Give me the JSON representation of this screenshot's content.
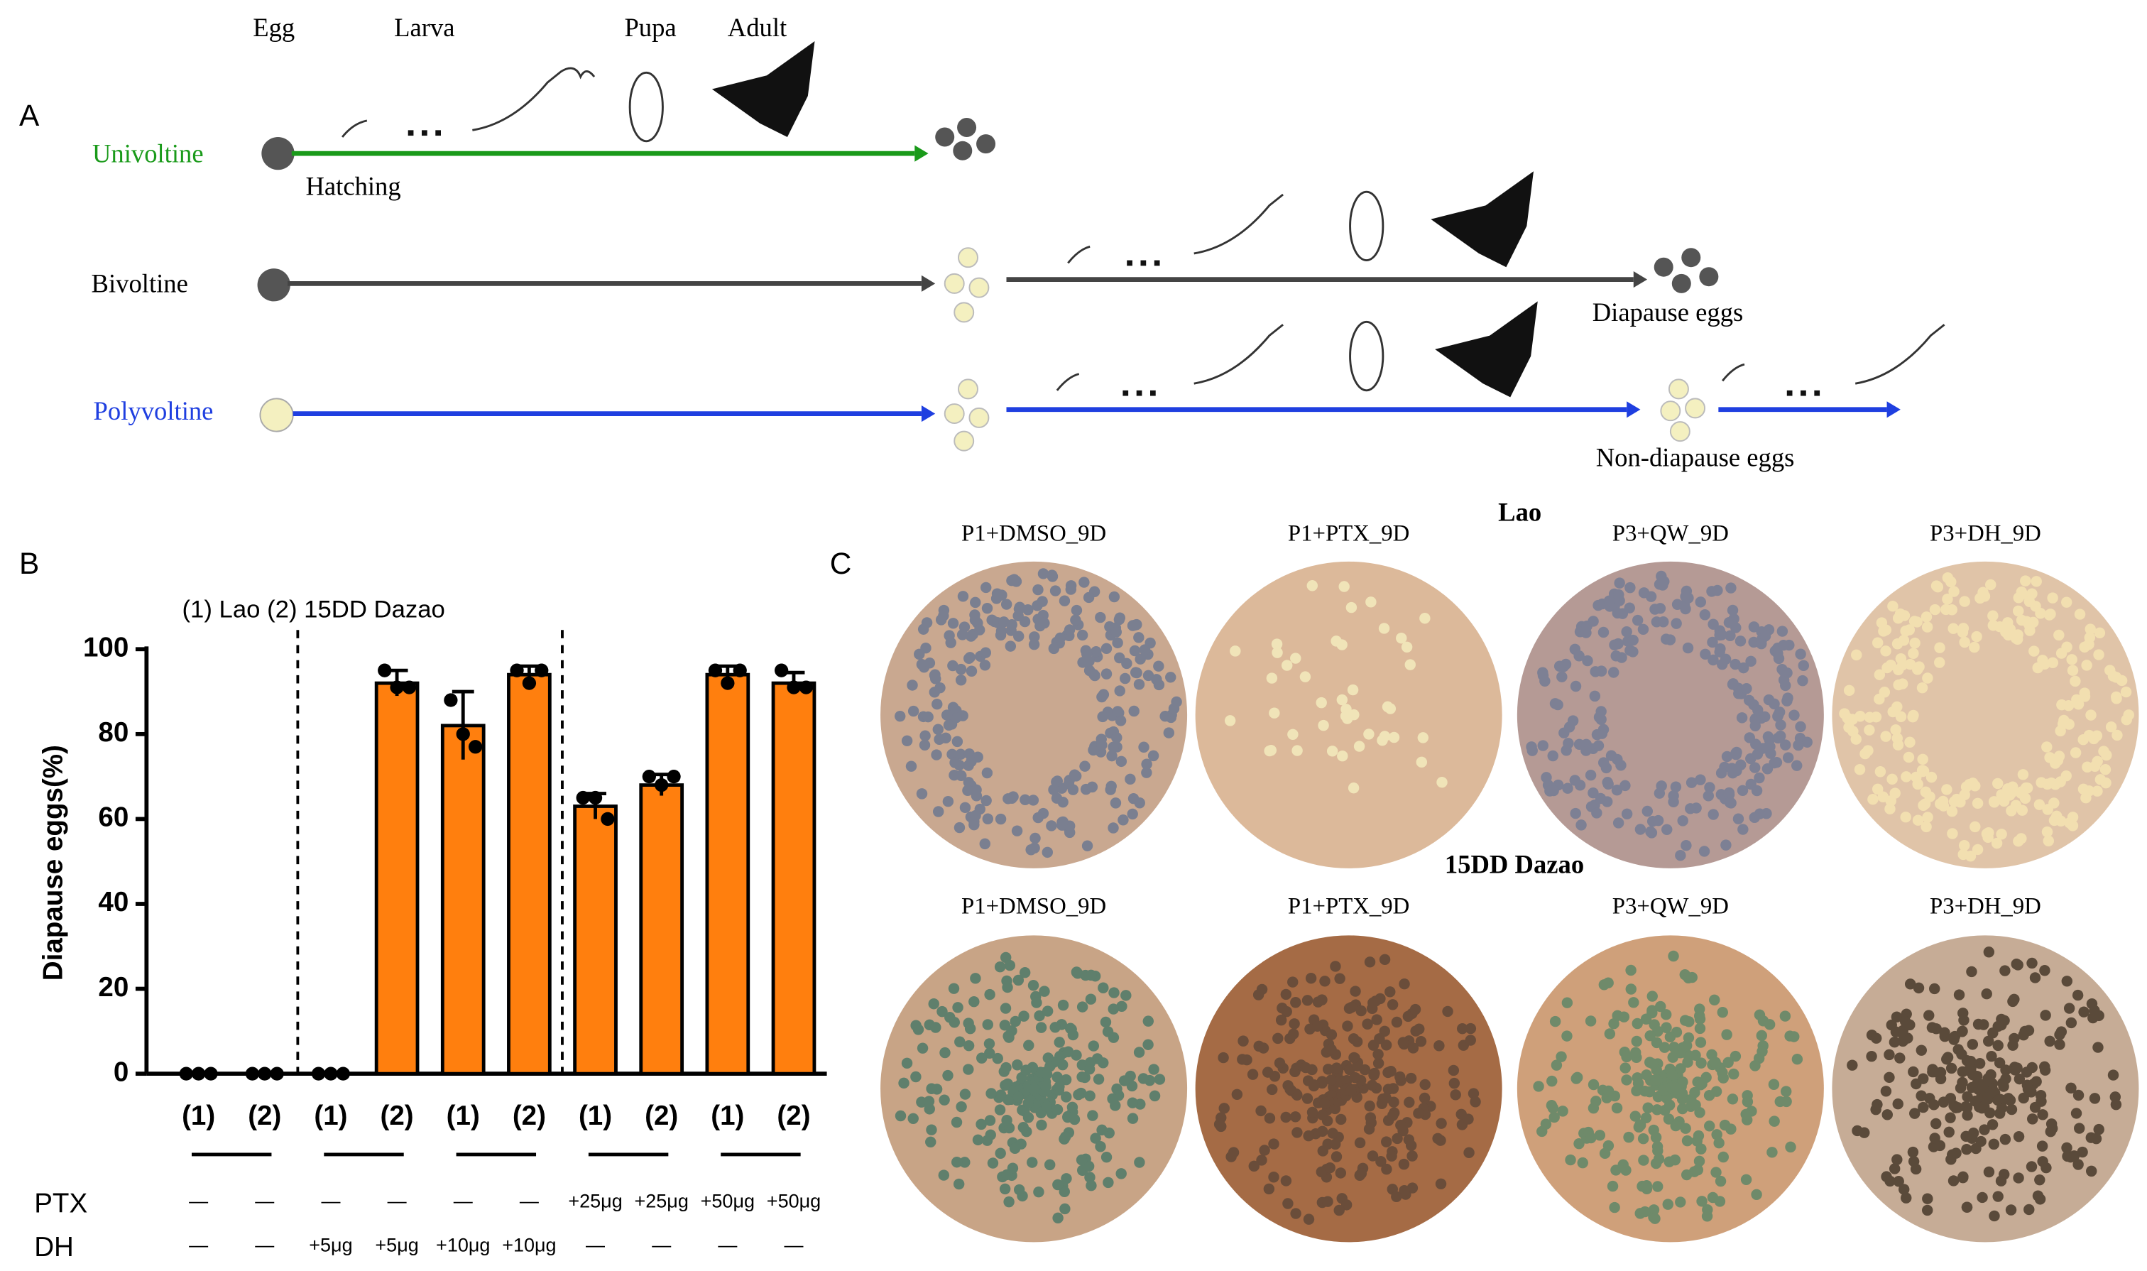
{
  "panel_a": {
    "label": "A",
    "stages": [
      "Egg",
      "Larva",
      "Pupa",
      "Adult"
    ],
    "univoltine": "Univoltine",
    "hatching": "Hatching",
    "bivoltine": "Bivoltine",
    "diapause_eggs": "Diapause eggs",
    "polyvoltine": "Polyvoltine",
    "non_diapause_eggs": "Non-diapause eggs"
  },
  "chart_data": {
    "type": "bar",
    "panel_label": "B",
    "legend_text": "(1) Lao  (2) 15DD Dazao",
    "y_label": "Diapause eggs(%)",
    "categories": [
      "(1)",
      "(2)",
      "(1)",
      "(2)",
      "(1)",
      "(2)",
      "(1)",
      "(2)",
      "(1)",
      "(2)"
    ],
    "values": [
      0,
      0,
      0,
      92,
      82,
      94,
      63,
      68,
      94,
      92
    ],
    "errors": [
      0,
      0,
      0,
      3,
      8,
      2,
      3,
      2.5,
      2,
      2.5
    ],
    "points": [
      [
        0,
        0,
        0
      ],
      [
        0,
        0,
        0
      ],
      [
        0,
        0,
        0
      ],
      [
        95,
        91,
        91
      ],
      [
        88,
        80,
        77
      ],
      [
        95,
        92,
        95
      ],
      [
        65,
        65,
        60
      ],
      [
        70,
        68,
        70
      ],
      [
        95,
        92,
        95
      ],
      [
        95,
        91,
        91
      ]
    ],
    "color": "#ff7f0e",
    "ylim": [
      0,
      100
    ],
    "yticks": [
      0,
      20,
      40,
      60,
      80,
      100
    ],
    "row_labels": [
      "PTX",
      "DH"
    ],
    "ptx": [
      "—",
      "—",
      "—",
      "—",
      "—",
      "—",
      "+25μg",
      "+25μg",
      "+50μg",
      "+50μg"
    ],
    "dh": [
      "—",
      "—",
      "+5μg",
      "+5μg",
      "+10μg",
      "+10μg",
      "—",
      "—",
      "—",
      "—"
    ]
  },
  "panel_c": {
    "label": "C",
    "lao": "Lao",
    "dazao": "15DD Dazao",
    "lao_plates": [
      "P1+DMSO_9D",
      "P1+PTX_9D",
      "P3+QW_9D",
      "P3+DH_9D"
    ],
    "dazao_plates": [
      "P1+DMSO_9D",
      "P1+PTX_9D",
      "P3+QW_9D",
      "P3+DH_9D"
    ]
  }
}
